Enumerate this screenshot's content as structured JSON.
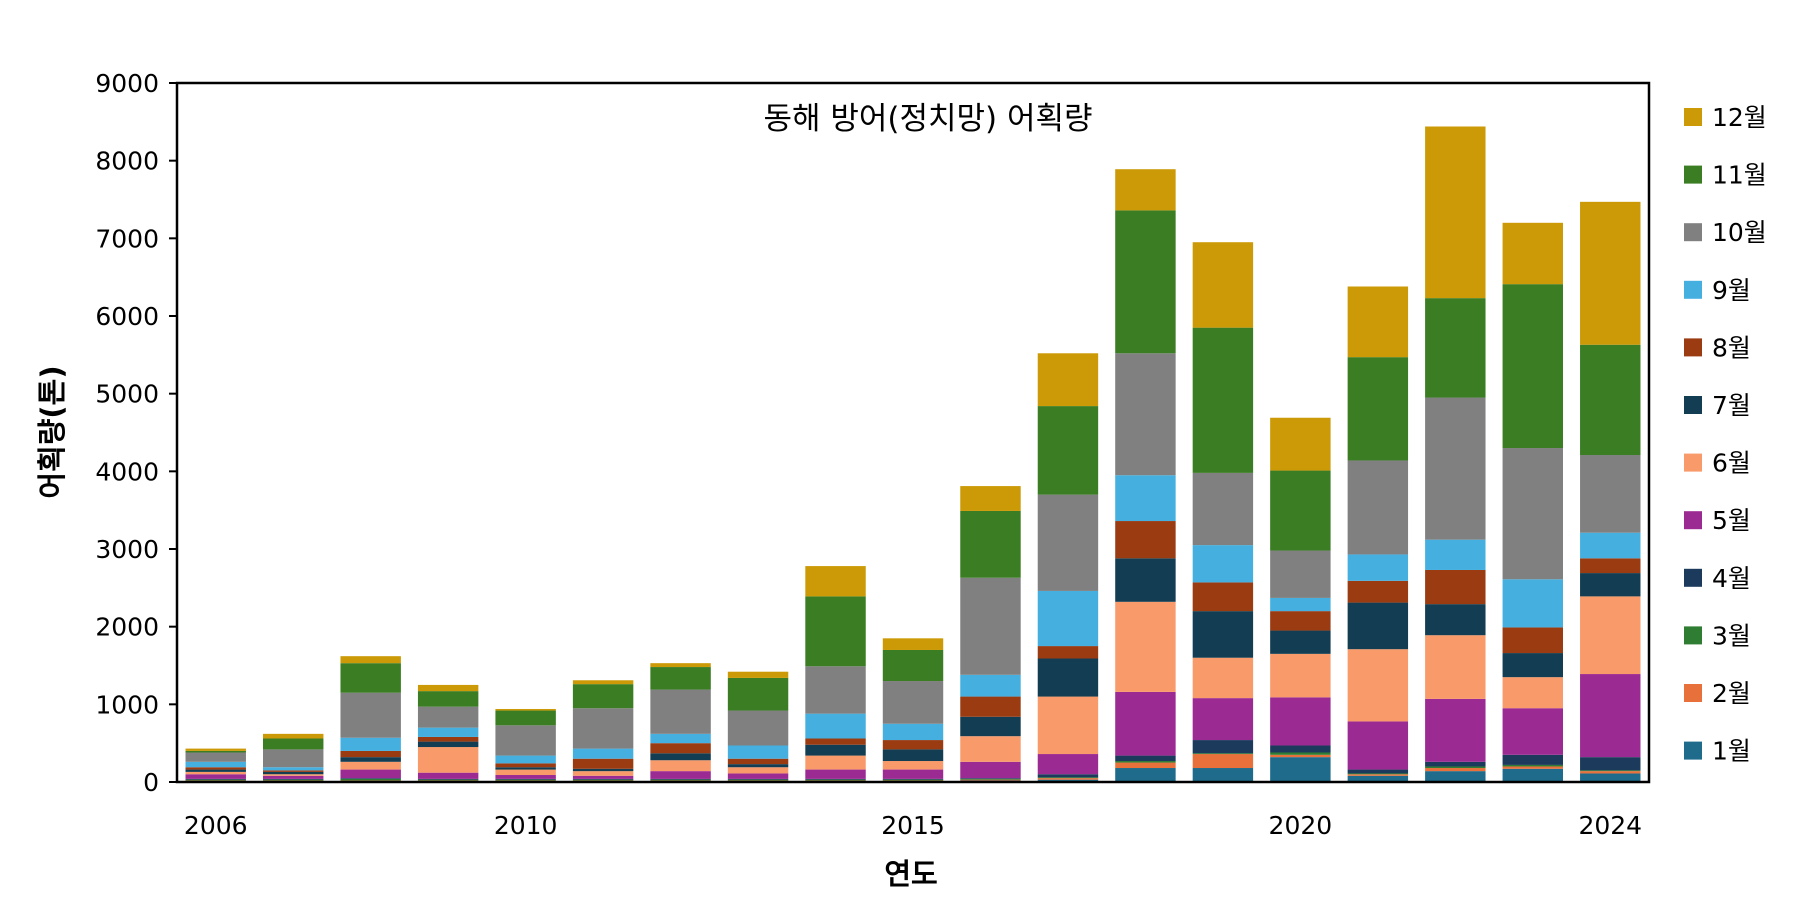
{
  "chart_data": {
    "type": "bar",
    "stacked": true,
    "title": "동해 방어(정치망) 어획량",
    "xlabel": "연도",
    "ylabel": "어획량(톤)",
    "ylim": [
      0,
      9000
    ],
    "yticks": [
      "0",
      "1000",
      "2000",
      "3000",
      "4000",
      "5000",
      "6000",
      "7000",
      "8000",
      "9000"
    ],
    "xticks": [
      "2006",
      "2010",
      "2015",
      "2020",
      "2024"
    ],
    "categories": [
      "2006",
      "2007",
      "2008",
      "2009",
      "2010",
      "2011",
      "2012",
      "2013",
      "2014",
      "2015",
      "2016",
      "2017",
      "2018",
      "2019",
      "2020",
      "2021",
      "2022",
      "2023",
      "2024"
    ],
    "grid": false,
    "legend_position": "right",
    "series": [
      {
        "name": "1월",
        "color": "#1f6b8c",
        "values": [
          10,
          10,
          10,
          10,
          10,
          10,
          10,
          10,
          10,
          10,
          20,
          30,
          180,
          180,
          320,
          80,
          140,
          170,
          110
        ]
      },
      {
        "name": "2월",
        "color": "#e8703a",
        "values": [
          10,
          10,
          10,
          10,
          10,
          10,
          10,
          10,
          10,
          10,
          10,
          20,
          70,
          180,
          30,
          20,
          40,
          30,
          30
        ]
      },
      {
        "name": "3월",
        "color": "#2e7d32",
        "values": [
          10,
          10,
          20,
          10,
          10,
          10,
          10,
          10,
          10,
          10,
          10,
          10,
          20,
          10,
          30,
          10,
          20,
          20,
          10
        ]
      },
      {
        "name": "4월",
        "color": "#1b3a5c",
        "values": [
          10,
          10,
          10,
          10,
          10,
          10,
          10,
          10,
          10,
          10,
          10,
          40,
          70,
          170,
          90,
          50,
          60,
          130,
          170
        ]
      },
      {
        "name": "5월",
        "color": "#9c2a93",
        "values": [
          60,
          40,
          110,
          80,
          50,
          40,
          100,
          70,
          120,
          120,
          210,
          260,
          820,
          540,
          620,
          620,
          810,
          600,
          1070
        ]
      },
      {
        "name": "6월",
        "color": "#f99a6a",
        "values": [
          30,
          20,
          100,
          330,
          70,
          60,
          140,
          80,
          180,
          110,
          330,
          740,
          1160,
          520,
          560,
          930,
          820,
          400,
          1000
        ]
      },
      {
        "name": "7월",
        "color": "#123d52",
        "values": [
          30,
          30,
          60,
          70,
          30,
          30,
          90,
          40,
          140,
          150,
          250,
          490,
          560,
          600,
          300,
          600,
          400,
          310,
          300
        ]
      },
      {
        "name": "8월",
        "color": "#9a3b12",
        "values": [
          30,
          20,
          80,
          60,
          50,
          130,
          130,
          70,
          80,
          120,
          260,
          160,
          480,
          370,
          250,
          280,
          440,
          330,
          190
        ]
      },
      {
        "name": "9월",
        "color": "#45b0e0",
        "values": [
          70,
          40,
          170,
          120,
          100,
          130,
          120,
          170,
          320,
          210,
          280,
          710,
          590,
          480,
          170,
          340,
          390,
          620,
          330
        ]
      },
      {
        "name": "10월",
        "color": "#808080",
        "values": [
          120,
          230,
          580,
          270,
          390,
          520,
          570,
          450,
          610,
          550,
          1250,
          1240,
          1570,
          930,
          610,
          1210,
          1830,
          1690,
          1000
        ]
      },
      {
        "name": "11월",
        "color": "#3a7d23",
        "values": [
          20,
          140,
          380,
          200,
          190,
          310,
          290,
          420,
          900,
          400,
          860,
          1140,
          1840,
          1870,
          1030,
          1330,
          1280,
          2110,
          1420
        ]
      },
      {
        "name": "12월",
        "color": "#cc9a06",
        "values": [
          30,
          60,
          90,
          80,
          20,
          50,
          50,
          80,
          390,
          150,
          320,
          680,
          530,
          1100,
          680,
          910,
          2210,
          790,
          1840
        ]
      }
    ]
  }
}
